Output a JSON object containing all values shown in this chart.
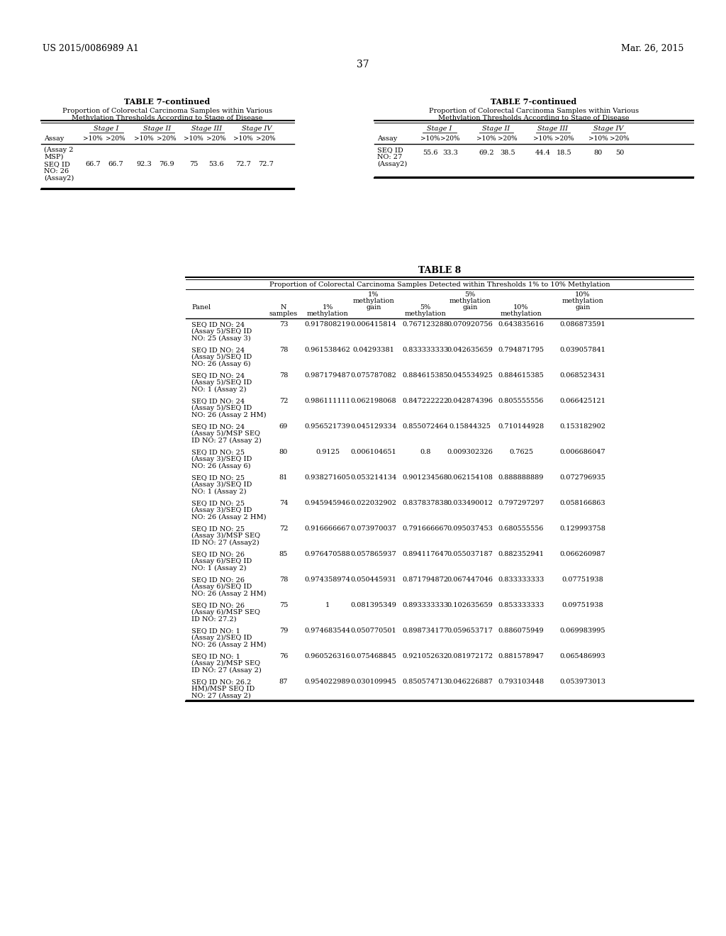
{
  "page_header_left": "US 2015/0086989 A1",
  "page_header_right": "Mar. 26, 2015",
  "page_number": "37",
  "background_color": "#ffffff",
  "text_color": "#000000",
  "table7_left": {
    "title": "TABLE 7-continued",
    "subtitle": "Proportion of Colorectal Carcinoma Samples within Various\nMethylation Thresholds According to Stage of Disease",
    "stage_headers": [
      "Stage I",
      "Stage II",
      "Stage III",
      "Stage IV"
    ],
    "col_headers": [
      ">10%",
      ">20%",
      ">10%",
      ">20%",
      ">10%",
      ">20%",
      ">10%",
      ">20%"
    ],
    "row_label_lines": [
      "(Assay 2",
      "MSP)",
      "SEQ ID",
      "NO: 26",
      "(Assay2)"
    ],
    "values": [
      "66.7",
      "66.7",
      "92.3",
      "76.9",
      "75",
      "53.6",
      "72.7",
      "72.7"
    ]
  },
  "table7_right": {
    "title": "TABLE 7-continued",
    "subtitle": "Proportion of Colorectal Carcinoma Samples within Various\nMethylation Thresholds According to Stage of Disease",
    "stage_headers": [
      "Stage I",
      "Stage II",
      "Stage III",
      "Stage IV"
    ],
    "col_headers": [
      ">10%",
      ">20%",
      ">10%",
      ">20%",
      ">10%",
      ">20%",
      ">10%",
      ">20%"
    ],
    "row_label_lines": [
      "SEQ ID",
      "NO: 27",
      "(Assay2)"
    ],
    "values": [
      "55.6",
      "33.3",
      "69.2",
      "38.5",
      "44.4",
      "18.5",
      "80",
      "50"
    ]
  },
  "table8": {
    "title": "TABLE 8",
    "subtitle": "Proportion of Colorectal Carcinoma Samples Detected within Thresholds 1% to 10% Methylation",
    "rows": [
      {
        "label": "SEQ ID NO: 24\n(Assay 5)/SEQ ID\nNO: 25 (Assay 3)",
        "n": "73",
        "v1": "0.917808219",
        "v2": "0.006415814",
        "v3": "0.767123288",
        "v4": "0.070920756",
        "v5": "0.643835616",
        "v6": "0.086873591"
      },
      {
        "label": "SEQ ID NO: 24\n(Assay 5)/SEQ ID\nNO: 26 (Assay 6)",
        "n": "78",
        "v1": "0.961538462",
        "v2": "0.04293381",
        "v3": "0.833333333",
        "v4": "0.042635659",
        "v5": "0.794871795",
        "v6": "0.039057841"
      },
      {
        "label": "SEQ ID NO: 24\n(Assay 5)/SEQ ID\nNO: 1 (Assay 2)",
        "n": "78",
        "v1": "0.987179487",
        "v2": "0.075787082",
        "v3": "0.884615385",
        "v4": "0.045534925",
        "v5": "0.884615385",
        "v6": "0.068523431"
      },
      {
        "label": "SEQ ID NO: 24\n(Assay 5)/SEQ ID\nNO: 26 (Assay 2 HM)",
        "n": "72",
        "v1": "0.986111111",
        "v2": "0.062198068",
        "v3": "0.847222222",
        "v4": "0.042874396",
        "v5": "0.805555556",
        "v6": "0.066425121"
      },
      {
        "label": "SEQ ID NO: 24\n(Assay 5)/MSP SEQ\nID NO: 27 (Assay 2)",
        "n": "69",
        "v1": "0.956521739",
        "v2": "0.045129334",
        "v3": "0.855072464",
        "v4": "0.15844325",
        "v5": "0.710144928",
        "v6": "0.153182902"
      },
      {
        "label": "SEQ ID NO: 25\n(Assay 3)/SEQ ID\nNO: 26 (Assay 6)",
        "n": "80",
        "v1": "0.9125",
        "v2": "0.006104651",
        "v3": "0.8",
        "v4": "0.009302326",
        "v5": "0.7625",
        "v6": "0.006686047"
      },
      {
        "label": "SEQ ID NO: 25\n(Assay 3)/SEQ ID\nNO: 1 (Assay 2)",
        "n": "81",
        "v1": "0.938271605",
        "v2": "0.053214134",
        "v3": "0.901234568",
        "v4": "0.062154108",
        "v5": "0.888888889",
        "v6": "0.072796935"
      },
      {
        "label": "SEQ ID NO: 25\n(Assay 3)/SEQ ID\nNO: 26 (Assay 2 HM)",
        "n": "74",
        "v1": "0.945945946",
        "v2": "0.022032902",
        "v3": "0.837837838",
        "v4": "0.033490012",
        "v5": "0.797297297",
        "v6": "0.058166863"
      },
      {
        "label": "SEQ ID NO: 25\n(Assay 3)/MSP SEQ\nID NO: 27 (Assay2)",
        "n": "72",
        "v1": "0.916666667",
        "v2": "0.073970037",
        "v3": "0.791666667",
        "v4": "0.095037453",
        "v5": "0.680555556",
        "v6": "0.129993758"
      },
      {
        "label": "SEQ ID NO: 26\n(Assay 6)/SEQ ID\nNO: 1 (Assay 2)",
        "n": "85",
        "v1": "0.976470588",
        "v2": "0.057865937",
        "v3": "0.894117647",
        "v4": "0.055037187",
        "v5": "0.882352941",
        "v6": "0.066260987"
      },
      {
        "label": "SEQ ID NO: 26\n(Assay 6)/SEQ ID\nNO: 26 (Assay 2 HM)",
        "n": "78",
        "v1": "0.974358974",
        "v2": "0.050445931",
        "v3": "0.871794872",
        "v4": "0.067447046",
        "v5": "0.833333333",
        "v6": "0.07751938"
      },
      {
        "label": "SEQ ID NO: 26\n(Assay 6)/MSP SEQ\nID NO: 27.2)",
        "n": "75",
        "v1": "1",
        "v2": "0.081395349",
        "v3": "0.893333333",
        "v4": "0.102635659",
        "v5": "0.853333333",
        "v6": "0.09751938"
      },
      {
        "label": "SEQ ID NO: 1\n(Assay 2)/SEQ ID\nNO: 26 (Assay 2 HM)",
        "n": "79",
        "v1": "0.974683544",
        "v2": "0.050770501",
        "v3": "0.898734177",
        "v4": "0.059653717",
        "v5": "0.886075949",
        "v6": "0.069983995"
      },
      {
        "label": "SEQ ID NO: 1\n(Assay 2)/MSP SEQ\nID NO: 27 (Assay 2)",
        "n": "76",
        "v1": "0.960526316",
        "v2": "0.075468845",
        "v3": "0.921052632",
        "v4": "0.081972172",
        "v5": "0.881578947",
        "v6": "0.065486993"
      },
      {
        "label": "SEQ ID NO: 26.2\nHM)/MSP SEQ ID\nNO: 27 (Assay 2)",
        "n": "87",
        "v1": "0.954022989",
        "v2": "0.030109945",
        "v3": "0.850574713",
        "v4": "0.046226887",
        "v5": "0.793103448",
        "v6": "0.053973013"
      }
    ]
  }
}
